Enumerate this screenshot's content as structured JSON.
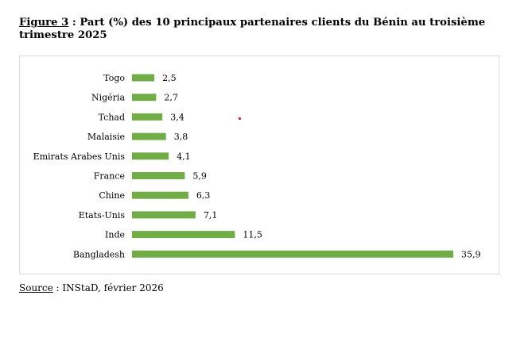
{
  "figure": {
    "label": "Figure 3",
    "separator": " : ",
    "title": "Part (%) des 10 principaux partenaires clients du Bénin au troisième trimestre 2025"
  },
  "source": {
    "label": "Source",
    "text": " : INStaD, février 2026"
  },
  "colors": {
    "bar": "#70ad47",
    "marker": "#e00000"
  },
  "chart_data": {
    "type": "bar",
    "orientation": "horizontal",
    "categories": [
      "Togo",
      "Nigéria",
      "Tchad",
      "Malaisie",
      "Emirats Arabes Unis",
      "France",
      "Chine",
      "Etats-Unis",
      "Inde",
      "Bangladesh"
    ],
    "values": [
      2.5,
      2.7,
      3.4,
      3.8,
      4.1,
      5.9,
      6.3,
      7.1,
      11.5,
      35.9
    ],
    "value_labels": [
      "2,5",
      "2,7",
      "3,4",
      "3,8",
      "4,1",
      "5,9",
      "6,3",
      "7,1",
      "11,5",
      "35,9"
    ],
    "xlim": [
      0,
      35.9
    ],
    "grid": false,
    "legend": "none"
  }
}
